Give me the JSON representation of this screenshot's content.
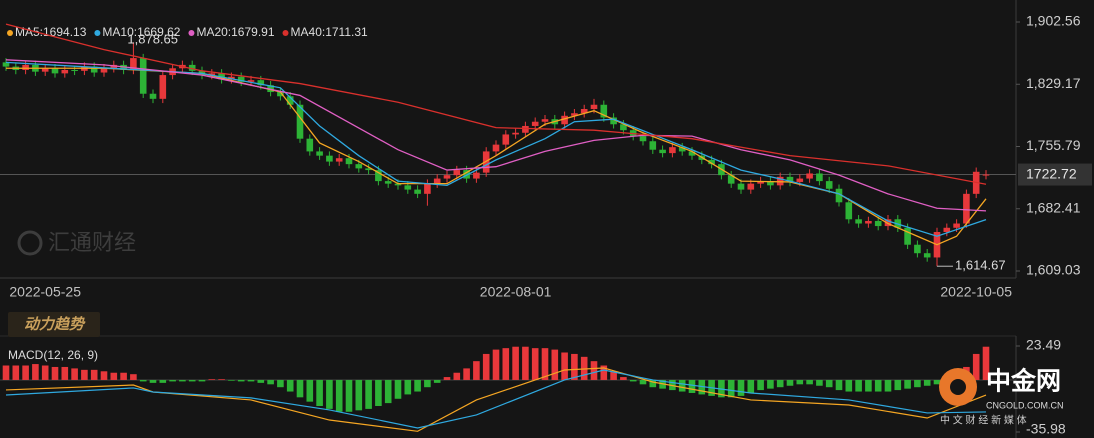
{
  "badge": "动力趋势",
  "watermark": "汇通财经",
  "logo": {
    "name": "中金网",
    "domain": "CNGOLD.COM.CN",
    "tagline": "中 文 财 经 新 媒 体"
  },
  "chart_data": [
    {
      "type": "candlestick",
      "up_color": "#e8383b",
      "down_color": "#2db336",
      "categories": [
        null,
        null,
        null,
        null,
        "2022-05-25",
        null,
        null,
        null,
        null,
        null,
        null,
        null,
        null,
        null,
        null,
        null,
        null,
        null,
        null,
        null,
        null,
        null,
        null,
        null,
        null,
        null,
        null,
        null,
        null,
        null,
        null,
        null,
        null,
        null,
        null,
        null,
        null,
        null,
        null,
        null,
        null,
        null,
        null,
        null,
        null,
        null,
        null,
        null,
        null,
        null,
        null,
        null,
        "2022-08-01",
        null,
        null,
        null,
        null,
        null,
        null,
        null,
        null,
        null,
        null,
        null,
        null,
        null,
        null,
        null,
        null,
        null,
        null,
        null,
        null,
        null,
        null,
        null,
        null,
        null,
        null,
        null,
        null,
        null,
        null,
        null,
        null,
        null,
        null,
        null,
        null,
        null,
        null,
        null,
        null,
        null,
        null,
        null,
        null,
        null,
        null,
        "2022-10-05",
        null
      ],
      "open": [
        1855,
        1850,
        1846,
        1852,
        1844,
        1848,
        1842,
        1846,
        1845,
        1850,
        1843,
        1848,
        1852,
        1846,
        1860,
        1818,
        1812,
        1840,
        1848,
        1852,
        1845,
        1840,
        1842,
        1835,
        1838,
        1832,
        1834,
        1828,
        1820,
        1815,
        1805,
        1765,
        1750,
        1745,
        1738,
        1742,
        1735,
        1730,
        1728,
        1715,
        1712,
        1710,
        1705,
        1700,
        1712,
        1718,
        1722,
        1728,
        1718,
        1725,
        1750,
        1758,
        1770,
        1772,
        1780,
        1785,
        1788,
        1782,
        1792,
        1795,
        1800,
        1805,
        1790,
        1782,
        1775,
        1768,
        1762,
        1752,
        1748,
        1755,
        1750,
        1745,
        1740,
        1735,
        1722,
        1712,
        1705,
        1712,
        1715,
        1710,
        1720,
        1714,
        1718,
        1724,
        1715,
        1706,
        1690,
        1670,
        1665,
        1668,
        1662,
        1670,
        1660,
        1640,
        1630,
        1625,
        1655,
        1660,
        1665,
        1700,
        1722
      ],
      "high": [
        1860,
        1855,
        1857,
        1857,
        1853,
        1853,
        1851,
        1851,
        1855,
        1855,
        1853,
        1857,
        1857,
        1878.65,
        1865,
        1823,
        1845,
        1853,
        1857,
        1857,
        1850,
        1847,
        1847,
        1843,
        1843,
        1839,
        1839,
        1833,
        1825,
        1820,
        1810,
        1770,
        1755,
        1750,
        1747,
        1747,
        1740,
        1735,
        1733,
        1720,
        1717,
        1715,
        1710,
        1717,
        1723,
        1727,
        1733,
        1733,
        1730,
        1755,
        1763,
        1775,
        1777,
        1785,
        1790,
        1793,
        1793,
        1797,
        1800,
        1805,
        1812,
        1810,
        1795,
        1787,
        1780,
        1773,
        1767,
        1757,
        1760,
        1760,
        1755,
        1750,
        1745,
        1740,
        1727,
        1717,
        1717,
        1720,
        1720,
        1725,
        1725,
        1723,
        1729,
        1729,
        1720,
        1711,
        1695,
        1675,
        1673,
        1673,
        1675,
        1675,
        1665,
        1645,
        1635,
        1660,
        1665,
        1670,
        1705,
        1731,
        1728
      ],
      "low": [
        1845,
        1841,
        1841,
        1839,
        1839,
        1837,
        1837,
        1840,
        1840,
        1838,
        1838,
        1843,
        1841,
        1841,
        1813,
        1807,
        1807,
        1835,
        1843,
        1840,
        1835,
        1835,
        1830,
        1830,
        1827,
        1827,
        1823,
        1815,
        1810,
        1800,
        1760,
        1745,
        1740,
        1733,
        1733,
        1730,
        1725,
        1723,
        1710,
        1707,
        1705,
        1700,
        1695,
        1686,
        1707,
        1713,
        1717,
        1713,
        1713,
        1720,
        1745,
        1753,
        1765,
        1767,
        1775,
        1780,
        1777,
        1777,
        1787,
        1790,
        1795,
        1785,
        1777,
        1770,
        1763,
        1757,
        1747,
        1743,
        1743,
        1745,
        1740,
        1735,
        1730,
        1717,
        1707,
        1700,
        1700,
        1707,
        1705,
        1705,
        1709,
        1709,
        1713,
        1710,
        1701,
        1685,
        1665,
        1660,
        1660,
        1657,
        1657,
        1655,
        1635,
        1625,
        1620,
        1614.67,
        1650,
        1655,
        1660,
        1695,
        1717
      ],
      "close": [
        1850,
        1846,
        1852,
        1844,
        1848,
        1842,
        1846,
        1845,
        1850,
        1843,
        1848,
        1852,
        1846,
        1860,
        1818,
        1812,
        1840,
        1848,
        1852,
        1845,
        1840,
        1842,
        1835,
        1838,
        1832,
        1834,
        1828,
        1820,
        1815,
        1805,
        1765,
        1750,
        1745,
        1738,
        1742,
        1735,
        1730,
        1728,
        1715,
        1712,
        1710,
        1705,
        1700,
        1712,
        1718,
        1722,
        1728,
        1718,
        1725,
        1750,
        1758,
        1770,
        1772,
        1780,
        1785,
        1788,
        1782,
        1792,
        1795,
        1800,
        1805,
        1790,
        1782,
        1775,
        1768,
        1762,
        1752,
        1748,
        1755,
        1750,
        1745,
        1740,
        1735,
        1722,
        1712,
        1705,
        1712,
        1715,
        1710,
        1720,
        1714,
        1718,
        1724,
        1715,
        1706,
        1690,
        1670,
        1665,
        1668,
        1662,
        1670,
        1660,
        1640,
        1630,
        1625,
        1655,
        1660,
        1665,
        1700,
        1726,
        1722.72
      ],
      "series": [
        {
          "name": "MA5:1694.13",
          "color": "#f5a623",
          "x": [
            0,
            10,
            20,
            28,
            32,
            36,
            40,
            45,
            50,
            55,
            60,
            65,
            70,
            75,
            80,
            85,
            90,
            93,
            95,
            97,
            100
          ],
          "values": [
            1848,
            1848,
            1842,
            1820,
            1760,
            1738,
            1712,
            1712,
            1745,
            1782,
            1798,
            1772,
            1750,
            1715,
            1714,
            1700,
            1665,
            1650,
            1640,
            1650,
            1694.13
          ]
        },
        {
          "name": "MA10:1669.62",
          "color": "#2fa9e0",
          "x": [
            0,
            20,
            28,
            32,
            36,
            40,
            45,
            50,
            55,
            58,
            62,
            66,
            70,
            75,
            80,
            85,
            90,
            95,
            100
          ],
          "values": [
            1855,
            1842,
            1825,
            1780,
            1745,
            1715,
            1710,
            1740,
            1765,
            1785,
            1788,
            1770,
            1752,
            1728,
            1715,
            1700,
            1668,
            1650,
            1669.62
          ]
        },
        {
          "name": "MA20:1679.91",
          "color": "#e05fc4",
          "x": [
            0,
            10,
            20,
            30,
            40,
            45,
            50,
            55,
            60,
            65,
            70,
            75,
            80,
            85,
            90,
            95,
            100
          ],
          "values": [
            1858,
            1852,
            1840,
            1816,
            1752,
            1728,
            1732,
            1750,
            1763,
            1769,
            1768,
            1752,
            1740,
            1722,
            1700,
            1683,
            1679.91
          ]
        },
        {
          "name": "MA40:1711.31",
          "color": "#d9302c",
          "x": [
            0,
            10,
            20,
            30,
            40,
            50,
            60,
            70,
            80,
            90,
            100
          ],
          "values": [
            1900,
            1870,
            1845,
            1830,
            1808,
            1778,
            1775,
            1765,
            1745,
            1733,
            1711.31
          ]
        }
      ],
      "ylim": [
        1609.03,
        1902.56
      ],
      "yticks": [
        {
          "value": 1609.03,
          "label": "1,609.03"
        },
        {
          "value": 1682.41,
          "label": "1,682.41"
        },
        {
          "value": 1755.79,
          "label": "1,755.79"
        },
        {
          "value": 1829.17,
          "label": "1,829.17"
        },
        {
          "value": 1902.56,
          "label": "1,902.56"
        }
      ],
      "high_label": {
        "value": 1878.65,
        "label": "1,878.65"
      },
      "low_label": {
        "value": 1614.67,
        "label": "1,614.67"
      },
      "last_price": 1722.72
    },
    {
      "type": "bar",
      "title": "MACD(12, 26, 9)",
      "values": [
        10,
        10,
        10,
        11,
        10,
        9,
        9,
        8,
        7,
        7,
        6,
        5,
        5,
        4,
        -1,
        -2,
        -2,
        -1,
        -1,
        -1,
        -1,
        0.5,
        0.5,
        -0.5,
        -1,
        -1,
        -2,
        -3,
        -5,
        -8,
        -12,
        -15,
        -18,
        -20,
        -22,
        -22,
        -21,
        -20,
        -18,
        -16,
        -13,
        -10,
        -8,
        -5,
        -2,
        2,
        5,
        8,
        13,
        18,
        21,
        22,
        23,
        23,
        22,
        22,
        21,
        19,
        18,
        16,
        13,
        10,
        6,
        2,
        -1,
        -3,
        -5,
        -6,
        -7,
        -8,
        -9,
        -10,
        -11,
        -12,
        -12,
        -11,
        -9,
        -7,
        -6,
        -5,
        -4,
        -3,
        -3,
        -4,
        -5,
        -7,
        -8,
        -8,
        -8,
        -8,
        -8,
        -7,
        -6,
        -5,
        -4,
        -3,
        -1,
        3,
        9,
        18,
        23
      ],
      "lines": [
        {
          "color": "#f5a623",
          "x": [
            0,
            13,
            15,
            25,
            33,
            42,
            48,
            57,
            61,
            66,
            76,
            86,
            94,
            100
          ],
          "values": [
            -6.9,
            -3.5,
            -8.3,
            -13.8,
            -27.7,
            -35.5,
            -13.8,
            6.9,
            8.3,
            -1.4,
            -13.8,
            -17.3,
            -26.3,
            -10.4
          ]
        },
        {
          "color": "#2fa9e0",
          "x": [
            0,
            13,
            15,
            25,
            33,
            42,
            48,
            57,
            61,
            66,
            76,
            86,
            94,
            100
          ],
          "values": [
            -10.4,
            -5.5,
            -8.3,
            -12.4,
            -20.7,
            -33.2,
            -24.2,
            0,
            6.9,
            0,
            -9,
            -13.8,
            -22.8,
            -22.1
          ]
        }
      ],
      "ylim": [
        -35.98,
        23.49
      ],
      "yticks": [
        -35.98,
        23.49
      ]
    }
  ]
}
